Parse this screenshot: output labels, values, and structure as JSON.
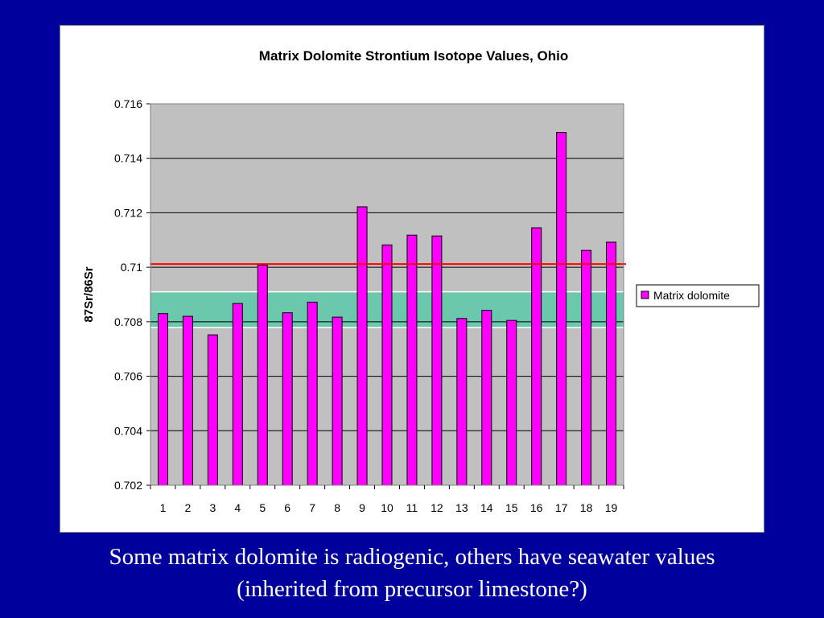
{
  "chart_data": {
    "type": "bar",
    "title": "Matrix Dolomite Strontium Isotope Values, Ohio",
    "xlabel": "",
    "ylabel": "87Sr/86Sr",
    "categories": [
      "1",
      "2",
      "3",
      "4",
      "5",
      "6",
      "7",
      "8",
      "9",
      "10",
      "11",
      "12",
      "13",
      "14",
      "15",
      "16",
      "17",
      "18",
      "19"
    ],
    "series": [
      {
        "name": "Matrix dolomite",
        "color": "#ff00ff",
        "values": [
          0.7083,
          0.7082,
          0.70752,
          0.70867,
          0.71008,
          0.70833,
          0.70872,
          0.70817,
          0.71222,
          0.71082,
          0.71118,
          0.71115,
          0.70812,
          0.70842,
          0.70805,
          0.71145,
          0.71495,
          0.71062,
          0.71092
        ]
      }
    ],
    "yticks": [
      "0.716",
      "0.714",
      "0.712",
      "0.71",
      "0.708",
      "0.706",
      "0.704",
      "0.702"
    ],
    "ylim": [
      0.702,
      0.716
    ],
    "grid": true,
    "legend_position": "right",
    "plot_background": "#c0c0c0",
    "annotations": {
      "seawater_band": {
        "range": [
          0.70779,
          0.7091
        ],
        "color": "#5fc8a8"
      },
      "reference_line": {
        "value": 0.71012,
        "color": "#ff0000"
      }
    }
  },
  "caption": {
    "line1": "Some matrix dolomite is radiogenic, others have seawater values",
    "line2": "(inherited from precursor limestone?)"
  }
}
